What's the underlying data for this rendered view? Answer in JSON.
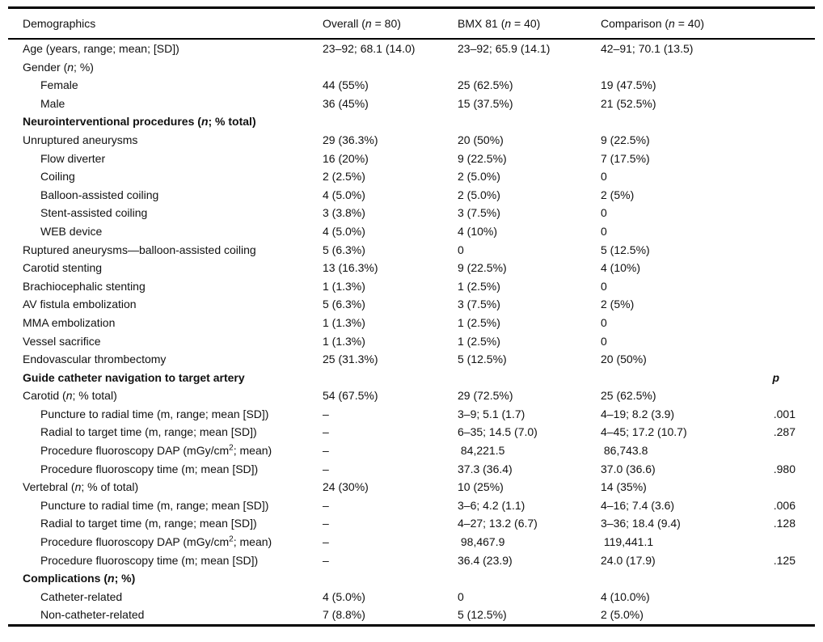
{
  "colors": {
    "text": "#111111",
    "background": "#ffffff",
    "rule": "#000000"
  },
  "header": {
    "demographics": "Demographics",
    "overall": "Overall (<i>n</i> = 80)",
    "bmx81": "BMX 81 (<i>n</i> = 40)",
    "comparison": "Comparison (<i>n</i> = 40)"
  },
  "rows": [
    {
      "label": "Age (years, range; mean; [SD])",
      "overall": "23–92; 68.1 (14.0)",
      "bmx81": "23–92; 65.9 (14.1)",
      "comparison": "42–91; 70.1 (13.5)"
    },
    {
      "label": "Gender (<i>n</i>; %)"
    },
    {
      "label": "Female",
      "indent": 1,
      "overall": "44 (55%)",
      "bmx81": "25 (62.5%)",
      "comparison": "19 (47.5%)"
    },
    {
      "label": "Male",
      "indent": 1,
      "overall": "36 (45%)",
      "bmx81": "15 (37.5%)",
      "comparison": "21 (52.5%)"
    },
    {
      "label": "Neurointerventional procedures (<i>n</i>; % total)",
      "bold": true
    },
    {
      "label": "Unruptured aneurysms",
      "overall": "29 (36.3%)",
      "bmx81": "20 (50%)",
      "comparison": "9 (22.5%)"
    },
    {
      "label": "Flow diverter",
      "indent": 1,
      "overall": "16 (20%)",
      "bmx81": "9 (22.5%)",
      "comparison": "7 (17.5%)"
    },
    {
      "label": "Coiling",
      "indent": 1,
      "overall": "2 (2.5%)",
      "bmx81": "2 (5.0%)",
      "comparison": "0"
    },
    {
      "label": "Balloon-assisted coiling",
      "indent": 1,
      "overall": "4 (5.0%)",
      "bmx81": "2 (5.0%)",
      "comparison": "2 (5%)"
    },
    {
      "label": "Stent-assisted coiling",
      "indent": 1,
      "overall": "3 (3.8%)",
      "bmx81": "3 (7.5%)",
      "comparison": "0"
    },
    {
      "label": "WEB device",
      "indent": 1,
      "overall": "4 (5.0%)",
      "bmx81": "4 (10%)",
      "comparison": "0"
    },
    {
      "label": "Ruptured aneurysms—balloon-assisted coiling",
      "overall": "5 (6.3%)",
      "bmx81": "0",
      "comparison": "5 (12.5%)"
    },
    {
      "label": "Carotid stenting",
      "overall": "13 (16.3%)",
      "bmx81": "9 (22.5%)",
      "comparison": "4 (10%)"
    },
    {
      "label": "Brachiocephalic stenting",
      "overall": "1 (1.3%)",
      "bmx81": "1 (2.5%)",
      "comparison": "0"
    },
    {
      "label": "AV fistula embolization",
      "overall": "5 (6.3%)",
      "bmx81": "3 (7.5%)",
      "comparison": "2 (5%)"
    },
    {
      "label": "MMA embolization",
      "overall": "1 (1.3%)",
      "bmx81": "1 (2.5%)",
      "comparison": "0"
    },
    {
      "label": "Vessel sacrifice",
      "overall": "1 (1.3%)",
      "bmx81": "1 (2.5%)",
      "comparison": "0"
    },
    {
      "label": "Endovascular thrombectomy",
      "overall": "25 (31.3%)",
      "bmx81": "5 (12.5%)",
      "comparison": "20 (50%)"
    },
    {
      "label": "Guide catheter navigation to target artery",
      "bold": true,
      "p": "p",
      "p_header": true
    },
    {
      "label": "Carotid (<i>n</i>; % total)",
      "overall": "54 (67.5%)",
      "bmx81": "29 (72.5%)",
      "comparison": "25 (62.5%)"
    },
    {
      "label": "Puncture to radial time (m, range; mean [SD])",
      "indent": 1,
      "overall": "–",
      "bmx81": "3–9; 5.1 (1.7)",
      "comparison": "4–19; 8.2 (3.9)",
      "p": ".001"
    },
    {
      "label": "Radial to target time (m, range; mean [SD])",
      "indent": 1,
      "overall": "–",
      "bmx81": "6–35; 14.5 (7.0)",
      "comparison": "4–45; 17.2 (10.7)",
      "p": ".287"
    },
    {
      "label": "Procedure fluoroscopy DAP (mGy/cm<sup>2</sup>; mean)",
      "indent": 1,
      "overall": "–",
      "bmx81": " 84,221.5",
      "comparison": " 86,743.8"
    },
    {
      "label": "Procedure fluoroscopy time (m; mean [SD])",
      "indent": 1,
      "overall": "–",
      "bmx81": "37.3 (36.4)",
      "comparison": "37.0 (36.6)",
      "p": ".980"
    },
    {
      "label": "Vertebral (<i>n</i>; % of total)",
      "overall": "24 (30%)",
      "bmx81": "10 (25%)",
      "comparison": "14 (35%)"
    },
    {
      "label": "Puncture to radial time (m, range; mean [SD])",
      "indent": 1,
      "overall": "–",
      "bmx81": "3–6; 4.2 (1.1)",
      "comparison": "4–16; 7.4 (3.6)",
      "p": ".006"
    },
    {
      "label": "Radial to target time (m, range; mean [SD])",
      "indent": 1,
      "overall": "–",
      "bmx81": "4–27; 13.2 (6.7)",
      "comparison": "3–36; 18.4 (9.4)",
      "p": ".128"
    },
    {
      "label": "Procedure fluoroscopy DAP (mGy/cm<sup>2</sup>; mean)",
      "indent": 1,
      "overall": "–",
      "bmx81": " 98,467.9",
      "comparison": " 119,441.1"
    },
    {
      "label": "Procedure fluoroscopy time (m; mean [SD])",
      "indent": 1,
      "overall": "–",
      "bmx81": "36.4 (23.9)",
      "comparison": "24.0 (17.9)",
      "p": ".125"
    },
    {
      "label": "Complications (<i>n</i>; %)",
      "bold": true
    },
    {
      "label": "Catheter-related",
      "indent": 1,
      "overall": "4 (5.0%)",
      "bmx81": "0",
      "comparison": "4 (10.0%)"
    },
    {
      "label": "Non-catheter-related",
      "indent": 1,
      "overall": "7 (8.8%)",
      "bmx81": "5 (12.5%)",
      "comparison": "2 (5.0%)"
    }
  ]
}
